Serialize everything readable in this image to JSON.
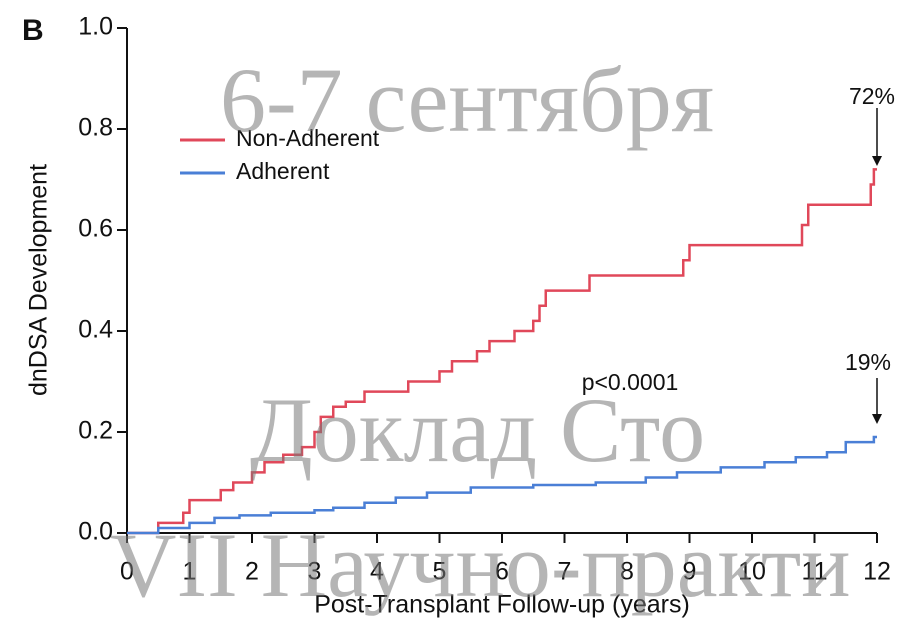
{
  "chart_data": {
    "type": "line",
    "step": true,
    "panel_label": "B",
    "xlabel": "Post-Transplant Follow-up (years)",
    "ylabel": "dnDSA Development",
    "xlim": [
      0,
      12
    ],
    "ylim": [
      0,
      1
    ],
    "xticks": [
      0,
      1,
      2,
      3,
      4,
      5,
      6,
      7,
      8,
      9,
      10,
      11,
      12
    ],
    "yticks": [
      {
        "value": 0,
        "label": "0.0"
      },
      0.2,
      0.4,
      0.6,
      0.8,
      {
        "value": 1,
        "label": "1.0"
      }
    ],
    "legend": "upper left",
    "series": [
      {
        "name": "Non-Adherent",
        "color": "#e0485a",
        "x": [
          0,
          0.5,
          0.9,
          1.0,
          1.5,
          1.7,
          2.0,
          2.2,
          2.5,
          2.8,
          3.0,
          3.1,
          3.3,
          3.5,
          3.8,
          4.5,
          5.0,
          5.2,
          5.6,
          5.8,
          6.2,
          6.5,
          6.6,
          6.7,
          7.4,
          8.9,
          9.0,
          10.8,
          10.9,
          11.9,
          11.95,
          12.0
        ],
        "values": [
          0,
          0.02,
          0.04,
          0.065,
          0.085,
          0.1,
          0.12,
          0.14,
          0.155,
          0.17,
          0.2,
          0.23,
          0.25,
          0.26,
          0.28,
          0.3,
          0.32,
          0.34,
          0.36,
          0.38,
          0.4,
          0.42,
          0.45,
          0.48,
          0.51,
          0.54,
          0.57,
          0.61,
          0.65,
          0.69,
          0.72,
          0.72
        ]
      },
      {
        "name": "Adherent",
        "color": "#4a7fd6",
        "x": [
          0,
          0.5,
          1.0,
          1.4,
          1.8,
          2.3,
          3.0,
          3.3,
          3.8,
          4.3,
          4.8,
          5.5,
          6.5,
          7.5,
          8.3,
          8.8,
          9.5,
          10.2,
          10.7,
          11.2,
          11.5,
          11.95,
          12.0
        ],
        "values": [
          0,
          0.01,
          0.02,
          0.03,
          0.035,
          0.04,
          0.045,
          0.05,
          0.06,
          0.07,
          0.08,
          0.09,
          0.095,
          0.1,
          0.11,
          0.12,
          0.13,
          0.14,
          0.15,
          0.16,
          0.18,
          0.19,
          0.19
        ]
      }
    ],
    "annotations": [
      "72%",
      "19%",
      "p<0.0001"
    ],
    "watermarks": [
      "6-7 сентября",
      "Доклад Сто",
      "VII Научно-практи"
    ]
  }
}
